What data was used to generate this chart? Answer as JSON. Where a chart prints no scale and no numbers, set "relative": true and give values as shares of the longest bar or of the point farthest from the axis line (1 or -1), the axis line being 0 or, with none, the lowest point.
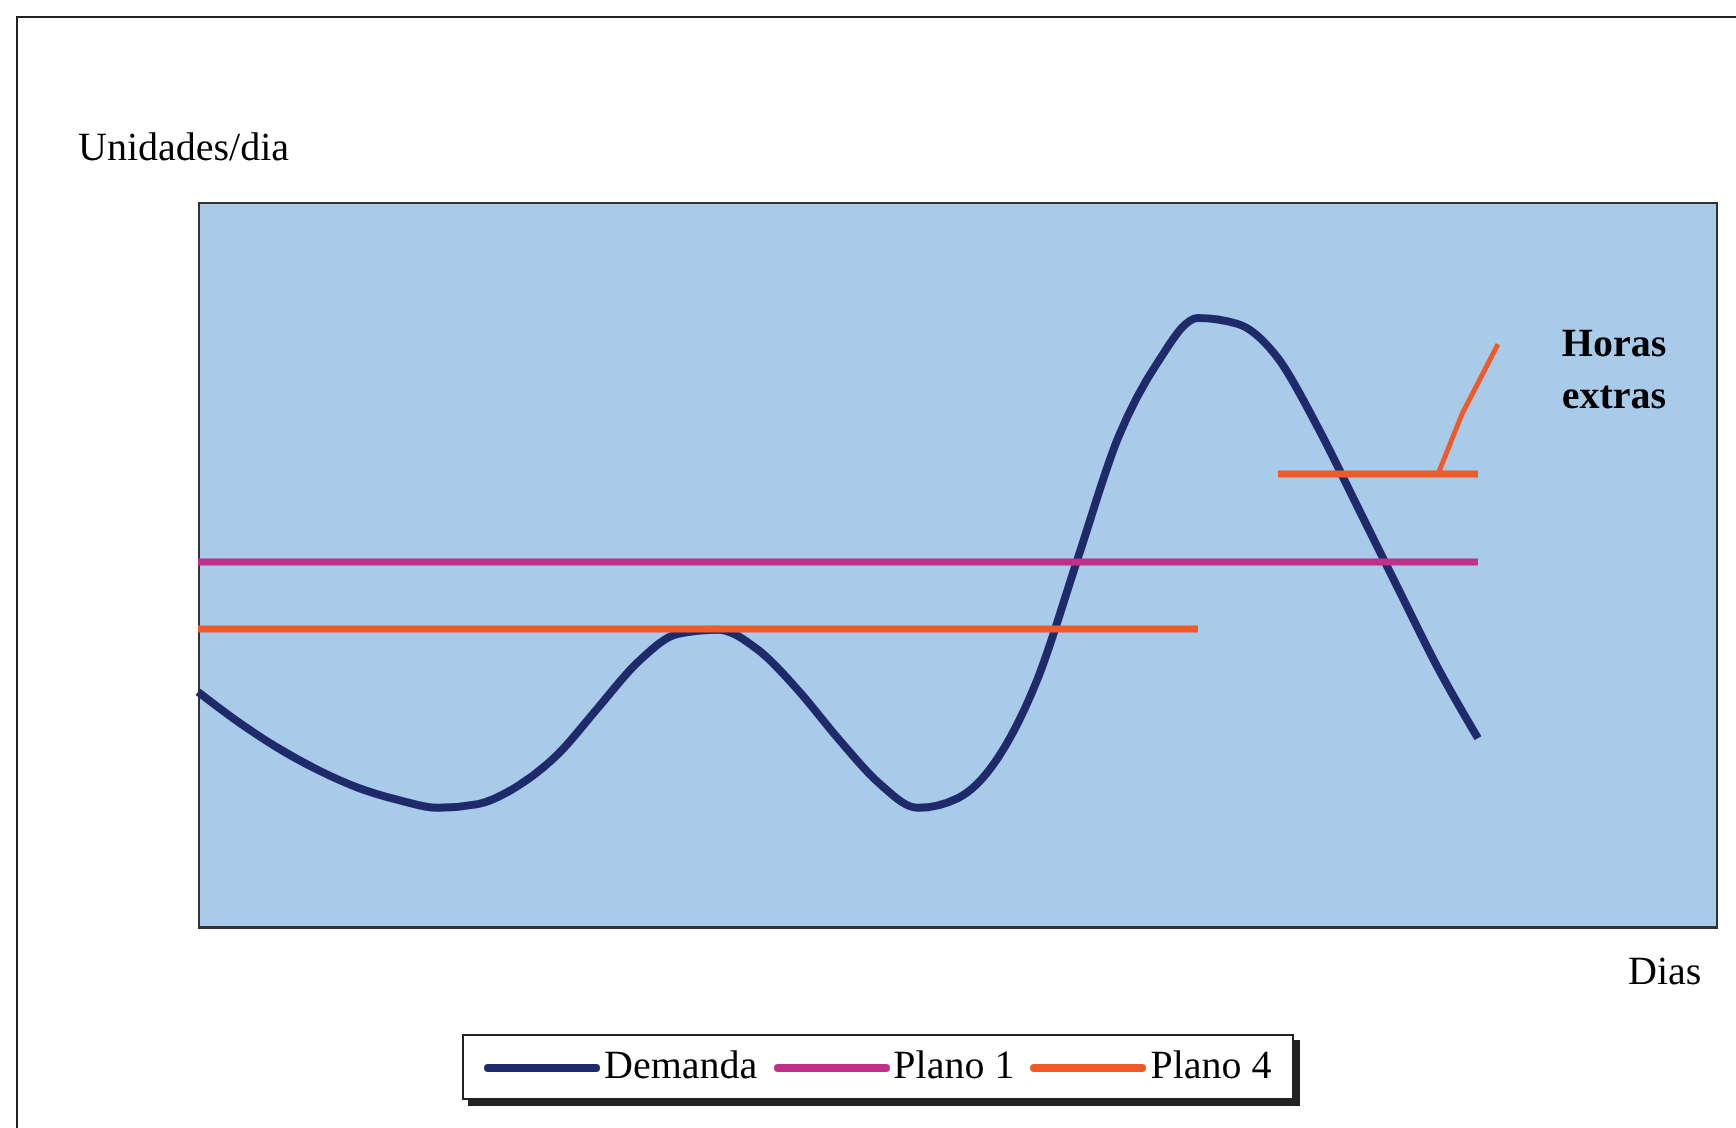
{
  "chart_data": {
    "type": "line",
    "relative": true,
    "xlabel": "Dias",
    "ylabel": "Unidades/dia",
    "categories": [
      null,
      null,
      null,
      null,
      null,
      null,
      null,
      null,
      null,
      null,
      null,
      null,
      null,
      null,
      null,
      null,
      null,
      null,
      null,
      null,
      null,
      null,
      null,
      null,
      null,
      null,
      null,
      null,
      null,
      null,
      null,
      null,
      null
    ],
    "series": [
      {
        "name": "Demanda",
        "color": "#1f2a6b",
        "values": [
          0.387,
          0.338,
          0.295,
          0.259,
          0.23,
          0.21,
          0.197,
          0.203,
          0.233,
          0.285,
          0.361,
          0.436,
          0.482,
          0.489,
          0.456,
          0.39,
          0.311,
          0.239,
          0.197,
          0.213,
          0.279,
          0.41,
          0.607,
          0.803,
          0.928,
          1,
          0.99,
          0.934,
          0.82,
          0.689,
          0.557,
          0.426,
          0.311
        ]
      },
      {
        "name": "Plano 1",
        "color": "#c0308a",
        "values": [
          0.6,
          0.6,
          0.6,
          0.6,
          0.6,
          0.6,
          0.6,
          0.6,
          0.6,
          0.6,
          0.6,
          0.6,
          0.6,
          0.6,
          0.6,
          0.6,
          0.6,
          0.6,
          0.6,
          0.6,
          0.6,
          0.6,
          0.6,
          0.6,
          0.6,
          0.6,
          0.6,
          0.6,
          0.6,
          0.6,
          0.6,
          0.6,
          0.6
        ]
      },
      {
        "name": "Plano 4",
        "color": "#f05a28",
        "values": [
          0.49,
          0.49,
          0.49,
          0.49,
          0.49,
          0.49,
          0.49,
          0.49,
          0.49,
          0.49,
          0.49,
          0.49,
          0.49,
          0.49,
          0.49,
          0.49,
          0.49,
          0.49,
          0.49,
          0.49,
          0.49,
          0.49,
          0.49,
          0.49,
          0.49,
          0.49,
          null,
          0.744,
          0.744,
          0.744,
          0.744,
          0.744,
          0.744
        ]
      }
    ],
    "annotations": [
      "Horas extras"
    ],
    "legend": "bottom",
    "marker": "none",
    "line_style": "solid"
  }
}
